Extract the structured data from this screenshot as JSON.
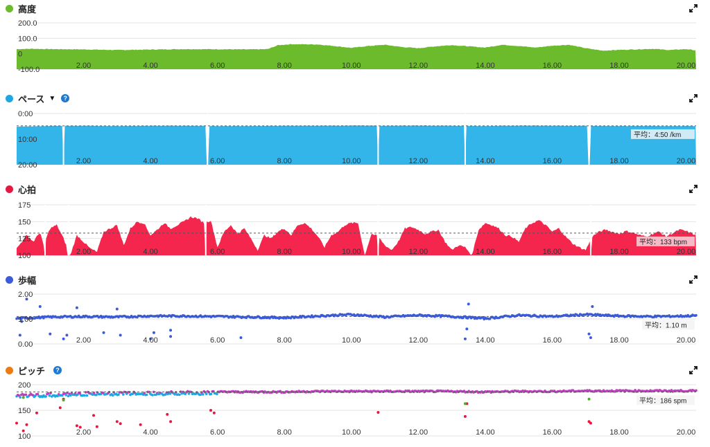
{
  "panels": {
    "altitude": {
      "title": "高度",
      "dot_color": "#6cbb2c",
      "expand_icon": "expand-icon"
    },
    "pace": {
      "title": "ペース",
      "dot_color": "#1ea7e1",
      "caret": "▼",
      "help": "?",
      "expand_icon": "expand-icon"
    },
    "heart": {
      "title": "心拍",
      "dot_color": "#e8173f",
      "expand_icon": "expand-icon"
    },
    "stride": {
      "title": "歩幅",
      "dot_color": "#3b5bd9",
      "expand_icon": "expand-icon"
    },
    "cadence": {
      "title": "ピッチ",
      "dot_color": "#ee7a13",
      "help": "?",
      "expand_icon": "expand-icon"
    }
  },
  "chart_data": [
    {
      "id": "altitude",
      "type": "area",
      "color": "#6cbb2c",
      "title": "高度",
      "xlim": [
        0,
        20.3
      ],
      "ylim": [
        -100,
        200
      ],
      "yticks": [
        "200.0",
        "100.0",
        "0",
        "-100.0"
      ],
      "ytick_values": [
        200,
        100,
        0,
        -100
      ],
      "xticks": [
        "2.00",
        "4.00",
        "6.00",
        "8.00",
        "10.00",
        "12.00",
        "14.00",
        "16.00",
        "18.00",
        "20.00"
      ],
      "x": [
        0,
        0.5,
        1,
        2,
        3,
        4,
        5,
        6,
        7,
        7.5,
        7.8,
        8.2,
        9,
        9.5,
        10,
        10.5,
        11,
        11.5,
        12,
        12.5,
        13,
        13.5,
        14,
        14.5,
        15,
        15.5,
        16,
        16.5,
        17,
        17.5,
        18,
        18.5,
        19,
        19.5,
        20,
        20.3
      ],
      "y": [
        30,
        32,
        30,
        28,
        24,
        27,
        30,
        29,
        28,
        30,
        55,
        62,
        60,
        50,
        38,
        50,
        58,
        44,
        36,
        48,
        56,
        48,
        40,
        58,
        50,
        40,
        52,
        58,
        36,
        20,
        25,
        28,
        32,
        24,
        30,
        22
      ]
    },
    {
      "id": "pace",
      "type": "area",
      "color": "#33b5ea",
      "title": "ペース",
      "xlim": [
        0,
        20.3
      ],
      "ylim": [
        0,
        20
      ],
      "inverted": true,
      "yticks": [
        "0:00",
        "10:00",
        "20:00"
      ],
      "ytick_values": [
        0,
        10,
        20
      ],
      "xticks": [
        "2.00",
        "4.00",
        "6.00",
        "8.00",
        "10.00",
        "12.00",
        "14.00",
        "16.00",
        "18.00",
        "20.00"
      ],
      "average": 4.833,
      "average_label": "平均：4:50 /km",
      "x": [
        0,
        1,
        2,
        3,
        4,
        5,
        6,
        7,
        8,
        9,
        10,
        11,
        12,
        13,
        14,
        15,
        16,
        17,
        18,
        19,
        20,
        20.3
      ],
      "y": [
        5.1,
        4.9,
        4.8,
        4.9,
        4.8,
        4.8,
        4.9,
        4.9,
        4.8,
        4.8,
        4.7,
        4.8,
        4.7,
        4.8,
        4.9,
        4.7,
        4.8,
        4.8,
        4.9,
        4.9,
        4.9,
        5.0
      ],
      "gaps": [
        1.4,
        5.7,
        10.8,
        13.4,
        17.1
      ]
    },
    {
      "id": "heart",
      "type": "area",
      "color": "#f5264d",
      "title": "心拍",
      "xlim": [
        0,
        20.3
      ],
      "ylim": [
        100,
        175
      ],
      "yticks": [
        "175",
        "150",
        "125",
        "100"
      ],
      "ytick_values": [
        175,
        150,
        125,
        100
      ],
      "xticks": [
        "2.00",
        "4.00",
        "6.00",
        "8.00",
        "10.00",
        "12.00",
        "14.00",
        "16.00",
        "18.00",
        "20.00"
      ],
      "average": 133,
      "average_label": "平均：133 bpm",
      "x": [
        0,
        0.3,
        0.5,
        0.7,
        0.8,
        1.0,
        1.2,
        1.4,
        1.6,
        1.8,
        2.0,
        2.2,
        2.4,
        2.6,
        2.8,
        3.0,
        3.2,
        3.4,
        3.6,
        3.8,
        4.0,
        4.2,
        4.4,
        4.6,
        4.8,
        5.0,
        5.2,
        5.4,
        5.6,
        5.8,
        6.0,
        6.2,
        6.4,
        6.6,
        6.8,
        7.0,
        7.2,
        7.4,
        7.6,
        7.8,
        8.0,
        8.2,
        8.4,
        8.6,
        8.8,
        9.0,
        9.2,
        9.4,
        9.6,
        9.8,
        10.0,
        10.2,
        10.4,
        10.6,
        10.8,
        11.0,
        11.2,
        11.4,
        11.6,
        11.8,
        12.0,
        12.2,
        12.4,
        12.6,
        12.8,
        13.0,
        13.2,
        13.4,
        13.6,
        13.8,
        14.0,
        14.2,
        14.4,
        14.6,
        14.8,
        15.0,
        15.2,
        15.4,
        15.6,
        15.8,
        16.0,
        16.2,
        16.4,
        16.6,
        16.8,
        17.0,
        17.2,
        17.4,
        17.6,
        17.8,
        18.0,
        18.2,
        18.4,
        18.6,
        18.8,
        19.0,
        19.2,
        19.4,
        19.6,
        19.8,
        20.0,
        20.3
      ],
      "y": [
        110,
        130,
        120,
        135,
        115,
        140,
        145,
        125,
        100,
        130,
        120,
        110,
        105,
        135,
        140,
        145,
        115,
        140,
        150,
        148,
        130,
        138,
        148,
        140,
        145,
        150,
        157,
        155,
        148,
        152,
        112,
        135,
        145,
        132,
        140,
        125,
        108,
        130,
        125,
        135,
        140,
        130,
        145,
        148,
        140,
        128,
        112,
        130,
        135,
        145,
        148,
        148,
        100,
        132,
        128,
        115,
        108,
        120,
        140,
        142,
        138,
        132,
        135,
        138,
        120,
        108,
        115,
        112,
        100,
        138,
        148,
        145,
        140,
        130,
        128,
        120,
        140,
        148,
        152,
        145,
        135,
        140,
        128,
        118,
        112,
        108,
        128,
        135,
        138,
        135,
        132,
        136,
        134,
        130,
        128,
        132,
        135,
        128,
        133,
        138,
        136,
        130
      ],
      "gaps": [
        0.85,
        1.55,
        5.65,
        10.8,
        17.15
      ]
    },
    {
      "id": "stride",
      "type": "scatter",
      "color": "#3b5bd9",
      "title": "歩幅",
      "xlim": [
        0,
        20.3
      ],
      "ylim": [
        0,
        2
      ],
      "yticks": [
        "2.00",
        "1.00",
        "0.00"
      ],
      "ytick_values": [
        2,
        1,
        0
      ],
      "xticks": [
        "2.00",
        "4.00",
        "6.00",
        "8.00",
        "10.00",
        "12.00",
        "14.00",
        "16.00",
        "18.00",
        "20.00"
      ],
      "average": 1.1,
      "average_label": "平均：1.10 m",
      "x": [
        0,
        1,
        2,
        3,
        4,
        5,
        6,
        7,
        8,
        9,
        10,
        11,
        12,
        13,
        14,
        15,
        16,
        17,
        18,
        19,
        20,
        20.3
      ],
      "y": [
        1.02,
        1.08,
        1.1,
        1.08,
        1.12,
        1.12,
        1.1,
        1.08,
        1.05,
        1.12,
        1.18,
        1.08,
        1.15,
        1.1,
        1.02,
        1.15,
        1.1,
        1.18,
        1.12,
        1.1,
        1.12,
        1.14
      ],
      "outliers_x": [
        0.1,
        0.15,
        0.3,
        0.7,
        1.0,
        1.4,
        1.5,
        1.8,
        2.6,
        3.0,
        3.1,
        4.0,
        4.1,
        4.6,
        4.6,
        6.7,
        13.4,
        13.45,
        13.5,
        17.1,
        17.15,
        17.2
      ],
      "outliers_y": [
        0.35,
        0.9,
        1.8,
        1.5,
        0.4,
        0.2,
        0.35,
        1.45,
        0.45,
        1.4,
        0.35,
        0.2,
        0.45,
        0.55,
        0.3,
        0.25,
        0.2,
        0.6,
        1.6,
        0.4,
        0.25,
        1.5
      ]
    },
    {
      "id": "cadence",
      "type": "scatter",
      "color": "#c03cc0",
      "title": "ピッチ",
      "xlim": [
        0,
        20.3
      ],
      "ylim": [
        100,
        200
      ],
      "yticks": [
        "200",
        "150",
        "100"
      ],
      "ytick_values": [
        200,
        150,
        100
      ],
      "xticks": [
        "2.00",
        "4.00",
        "6.00",
        "8.00",
        "10.00",
        "12.00",
        "14.00",
        "16.00",
        "18.00",
        "20.00"
      ],
      "average": 186,
      "average_label": "平均：186 spm",
      "x": [
        0,
        1,
        2,
        3,
        4,
        5,
        6,
        7,
        8,
        9,
        10,
        11,
        12,
        13,
        14,
        15,
        16,
        17,
        18,
        19,
        20,
        20.3
      ],
      "y": [
        180,
        182,
        184,
        185,
        185,
        186,
        186,
        186,
        186,
        187,
        187,
        187,
        187,
        187,
        186,
        187,
        187,
        188,
        188,
        188,
        188,
        188
      ],
      "cyan_end_x": 6.0,
      "outliers_x": [
        0.0,
        0.2,
        0.3,
        0.6,
        1.3,
        1.4,
        1.8,
        1.9,
        2.3,
        2.4,
        3.0,
        3.1,
        3.7,
        4.5,
        4.6,
        5.8,
        5.9,
        10.8,
        13.4,
        13.45,
        17.1,
        17.15
      ],
      "outliers_y": [
        125,
        110,
        122,
        145,
        155,
        172,
        120,
        117,
        140,
        118,
        128,
        124,
        122,
        142,
        128,
        150,
        145,
        146,
        138,
        163,
        128,
        125
      ],
      "outlier_color": "#e8173f",
      "green_x": [
        0.2,
        1.4,
        13.4,
        17.1
      ],
      "green_y": [
        175,
        170,
        163,
        172
      ]
    }
  ]
}
